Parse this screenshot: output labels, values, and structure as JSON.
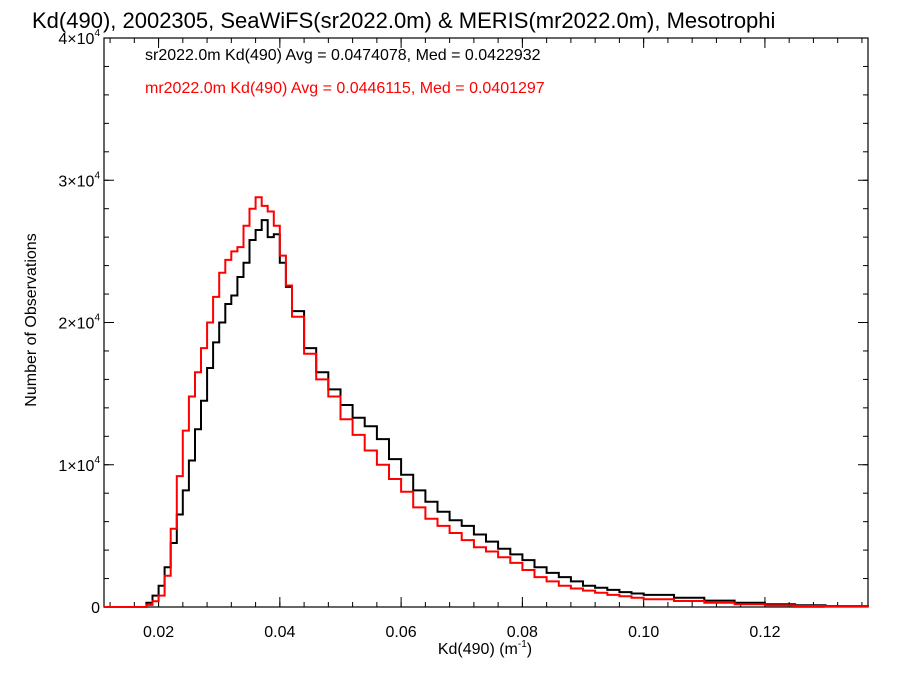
{
  "chart_data": {
    "type": "line",
    "title": "Kd(490), 2002305, SeaWiFS(sr2022.0m) & MERIS(mr2022.0m), Mesotrophi",
    "xlabel": "Kd(490) (m",
    "xlabel_sup": "-1",
    "xlabel_end": ")",
    "ylabel": "Number of Observations",
    "xlim": [
      0.011,
      0.137
    ],
    "ylim": [
      0,
      40000
    ],
    "x_ticks": [
      {
        "value": 0.02,
        "label": "0.02"
      },
      {
        "value": 0.04,
        "label": "0.04"
      },
      {
        "value": 0.06,
        "label": "0.06"
      },
      {
        "value": 0.08,
        "label": "0.08"
      },
      {
        "value": 0.1,
        "label": "0.10"
      },
      {
        "value": 0.12,
        "label": "0.12"
      }
    ],
    "y_ticks": [
      {
        "value": 0,
        "base": "0",
        "exp": ""
      },
      {
        "value": 10000,
        "base": "1×10",
        "exp": "4"
      },
      {
        "value": 20000,
        "base": "2×10",
        "exp": "4"
      },
      {
        "value": 30000,
        "base": "3×10",
        "exp": "4"
      },
      {
        "value": 40000,
        "base": "4×10",
        "exp": "4"
      }
    ],
    "annotations": [
      {
        "text": "sr2022.0m Kd(490) Avg = 0.0474078, Med = 0.0422932",
        "color": "#000000"
      },
      {
        "text": "mr2022.0m Kd(490) Avg = 0.0446115, Med = 0.0401297",
        "color": "#ff0000"
      }
    ],
    "series": [
      {
        "color": "#000000",
        "x": [
          0.011,
          0.0155,
          0.018,
          0.019,
          0.02,
          0.021,
          0.022,
          0.023,
          0.024,
          0.025,
          0.026,
          0.027,
          0.028,
          0.029,
          0.03,
          0.031,
          0.032,
          0.033,
          0.034,
          0.035,
          0.036,
          0.037,
          0.038,
          0.039,
          0.04,
          0.041,
          0.042,
          0.044,
          0.046,
          0.048,
          0.05,
          0.052,
          0.054,
          0.056,
          0.058,
          0.06,
          0.062,
          0.064,
          0.066,
          0.068,
          0.07,
          0.072,
          0.074,
          0.076,
          0.078,
          0.08,
          0.082,
          0.084,
          0.086,
          0.088,
          0.09,
          0.092,
          0.094,
          0.096,
          0.098,
          0.1,
          0.105,
          0.11,
          0.115,
          0.12,
          0.125,
          0.13,
          0.137
        ],
        "y": [
          0,
          0,
          300,
          800,
          1500,
          2800,
          4500,
          6500,
          8200,
          10300,
          12500,
          14500,
          16800,
          18600,
          20000,
          21300,
          21900,
          23200,
          24200,
          25800,
          26500,
          27200,
          26000,
          26200,
          24200,
          22500,
          20800,
          18200,
          16500,
          15300,
          14200,
          13300,
          12700,
          11800,
          10400,
          9300,
          8200,
          7400,
          6700,
          6100,
          5700,
          5100,
          4600,
          4100,
          3700,
          3300,
          2800,
          2400,
          2100,
          1800,
          1500,
          1350,
          1200,
          1050,
          950,
          850,
          650,
          450,
          300,
          200,
          120,
          60,
          10
        ]
      },
      {
        "color": "#ff0000",
        "x": [
          0.011,
          0.0165,
          0.018,
          0.019,
          0.02,
          0.021,
          0.022,
          0.023,
          0.024,
          0.025,
          0.026,
          0.027,
          0.028,
          0.029,
          0.03,
          0.031,
          0.032,
          0.033,
          0.034,
          0.035,
          0.036,
          0.037,
          0.038,
          0.039,
          0.04,
          0.041,
          0.042,
          0.044,
          0.046,
          0.048,
          0.05,
          0.052,
          0.054,
          0.056,
          0.058,
          0.06,
          0.062,
          0.064,
          0.066,
          0.068,
          0.07,
          0.072,
          0.074,
          0.076,
          0.078,
          0.08,
          0.082,
          0.084,
          0.086,
          0.088,
          0.09,
          0.092,
          0.094,
          0.096,
          0.098,
          0.1,
          0.105,
          0.11,
          0.115,
          0.12,
          0.125,
          0.13,
          0.137
        ],
        "y": [
          0,
          0,
          150,
          400,
          800,
          2200,
          5500,
          9200,
          12400,
          14800,
          16500,
          18200,
          20000,
          21800,
          23500,
          24400,
          25000,
          25300,
          26800,
          28000,
          28800,
          28200,
          27800,
          26800,
          24700,
          22600,
          20400,
          17800,
          16000,
          14800,
          13200,
          12100,
          11000,
          10000,
          9000,
          8100,
          7000,
          6200,
          5700,
          5200,
          4700,
          4200,
          3900,
          3500,
          3100,
          2600,
          2100,
          1800,
          1500,
          1300,
          1150,
          1000,
          850,
          750,
          650,
          550,
          420,
          300,
          200,
          120,
          70,
          40,
          10
        ]
      }
    ]
  }
}
